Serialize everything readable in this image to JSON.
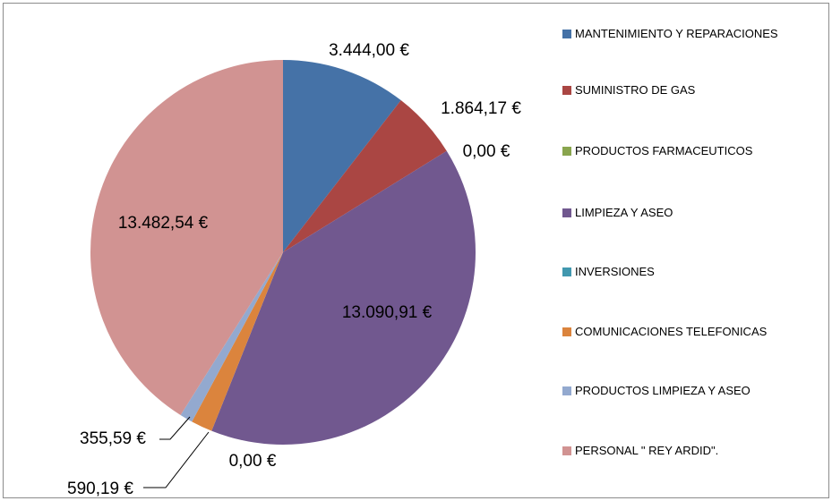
{
  "chart_data": {
    "type": "pie",
    "categories": [
      "MANTENIMIENTO Y REPARACIONES",
      "SUMINISTRO DE GAS",
      "PRODUCTOS FARMACEUTICOS",
      "LIMPIEZA Y ASEO",
      "INVERSIONES",
      "COMUNICACIONES TELEFONICAS",
      "PRODUCTOS LIMPIEZA Y ASEO",
      "PERSONAL \" REY ARDID\"."
    ],
    "values": [
      3444.0,
      1864.17,
      0.0,
      13090.91,
      0.0,
      590.19,
      355.59,
      13482.54
    ],
    "value_labels": [
      "3.444,00 €",
      "1.864,17 €",
      "0,00 €",
      "13.090,91 €",
      "0,00 €",
      "590,19 €",
      "355,59 €",
      "13.482,54 €"
    ],
    "colors": [
      "#4572a7",
      "#aa4643",
      "#89a54e",
      "#71588f",
      "#4198af",
      "#db843d",
      "#93a9cf",
      "#d19392"
    ],
    "legend": "right"
  }
}
